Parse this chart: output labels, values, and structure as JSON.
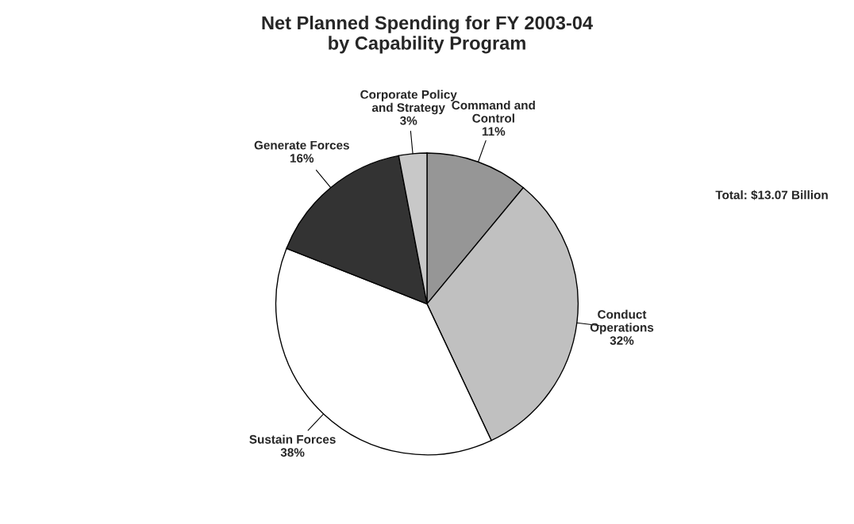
{
  "chart_data": {
    "type": "pie",
    "title": "Net Planned Spending for FY 2003-04\nby Capability Program",
    "categories": [
      "Command and\nControl",
      "Conduct\nOperations",
      "Sustain Forces",
      "Generate Forces",
      "Corporate Policy\nand Strategy"
    ],
    "values": [
      11,
      32,
      38,
      16,
      3
    ],
    "value_labels": [
      "11%",
      "32%",
      "38%",
      "16%",
      "3%"
    ],
    "colors": [
      "#969696",
      "#c0c0c0",
      "#ffffff",
      "#333333",
      "#c8c8c8"
    ],
    "annotations": [
      "Total: $13.07 Billion"
    ],
    "legend": false
  }
}
